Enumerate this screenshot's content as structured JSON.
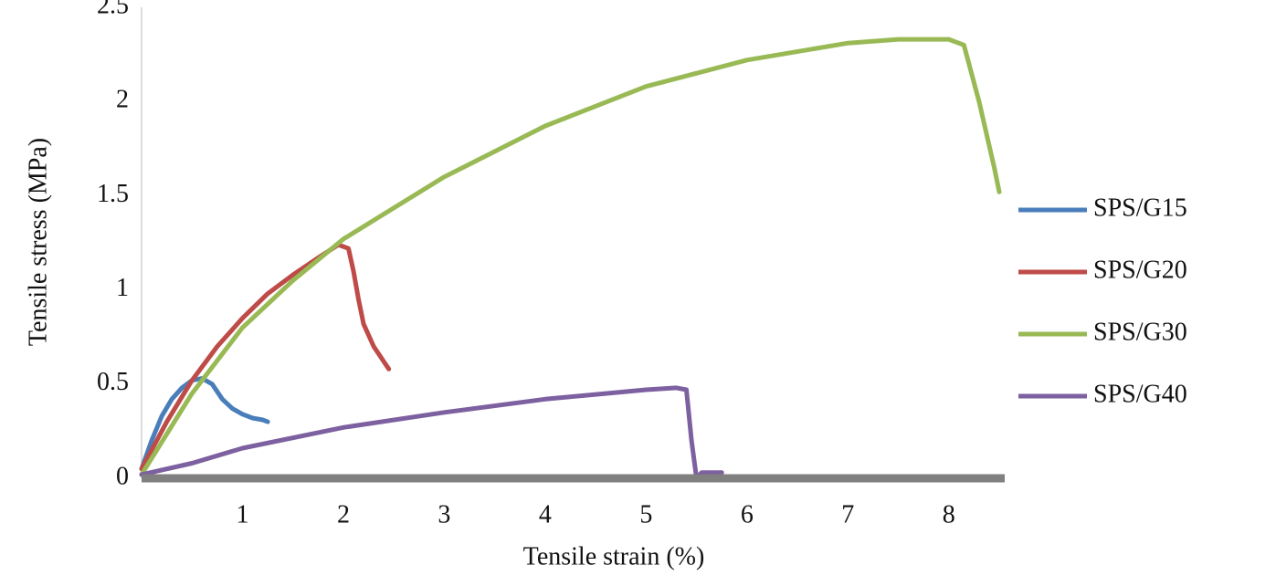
{
  "chart_data": {
    "type": "line",
    "x_label": "Tensile strain (%)",
    "y_label": "Tensile stress (MPa)",
    "xlim": [
      0,
      8.5
    ],
    "xticks": [
      1,
      2,
      3,
      4,
      5,
      6,
      7,
      8
    ],
    "ylim": [
      0,
      2.5
    ],
    "yticks": [
      0,
      0.5,
      1,
      1.5,
      2,
      2.5
    ],
    "grid": false,
    "legend": "right",
    "series": [
      {
        "name": "SPS/G15",
        "color": "#4a7ebb",
        "x": [
          0,
          0.1,
          0.2,
          0.3,
          0.4,
          0.5,
          0.6,
          0.7,
          0.8,
          0.9,
          1.0,
          1.1,
          1.2,
          1.25
        ],
        "values": [
          0.05,
          0.2,
          0.33,
          0.42,
          0.48,
          0.52,
          0.53,
          0.5,
          0.42,
          0.37,
          0.34,
          0.32,
          0.31,
          0.3
        ]
      },
      {
        "name": "SPS/G20",
        "color": "#be4b48",
        "x": [
          0,
          0.25,
          0.5,
          0.75,
          1.0,
          1.25,
          1.5,
          1.75,
          1.95,
          2.05,
          2.1,
          2.15,
          2.2,
          2.3,
          2.4,
          2.45
        ],
        "values": [
          0.05,
          0.3,
          0.52,
          0.7,
          0.85,
          0.98,
          1.08,
          1.17,
          1.24,
          1.22,
          1.1,
          0.95,
          0.82,
          0.7,
          0.62,
          0.58
        ]
      },
      {
        "name": "SPS/G30",
        "color": "#98b954",
        "x": [
          0,
          0.5,
          1,
          1.5,
          2,
          3,
          4,
          5,
          6,
          7,
          7.5,
          8,
          8.15,
          8.3,
          8.45,
          8.5
        ],
        "values": [
          0.02,
          0.45,
          0.8,
          1.05,
          1.27,
          1.6,
          1.87,
          2.08,
          2.22,
          2.31,
          2.33,
          2.33,
          2.3,
          2.0,
          1.65,
          1.52
        ]
      },
      {
        "name": "SPS/G40",
        "color": "#7d60a0",
        "x": [
          0,
          0.5,
          1,
          2,
          3,
          4,
          5,
          5.3,
          5.4,
          5.45,
          5.5,
          5.55,
          5.75
        ],
        "values": [
          0.02,
          0.08,
          0.16,
          0.27,
          0.35,
          0.42,
          0.47,
          0.48,
          0.47,
          0.2,
          0.0,
          0.03,
          0.03
        ]
      }
    ]
  }
}
